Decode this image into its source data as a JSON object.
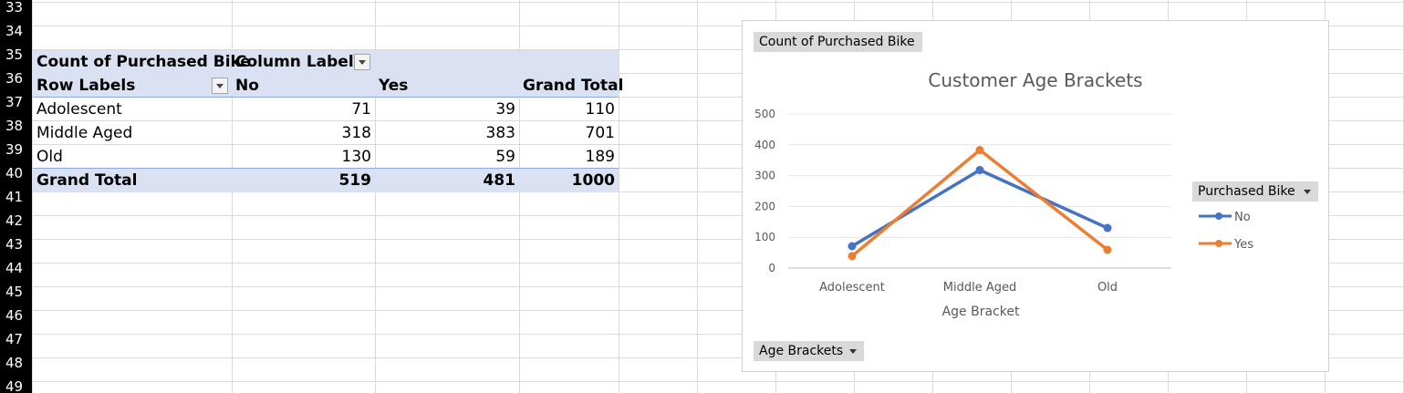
{
  "row_numbers": [
    "33",
    "34",
    "35",
    "36",
    "37",
    "38",
    "39",
    "40",
    "41",
    "42",
    "43",
    "44",
    "45",
    "46",
    "47",
    "48",
    "49"
  ],
  "pivot": {
    "corner_label": "Count of Purchased Bike",
    "column_labels": "Column Labels",
    "row_labels": "Row Labels",
    "col_headers": [
      "No",
      "Yes",
      "Grand Total"
    ],
    "rows": [
      {
        "label": "Adolescent",
        "no": "71",
        "yes": "39",
        "total": "110"
      },
      {
        "label": "Middle Aged",
        "no": "318",
        "yes": "383",
        "total": "701"
      },
      {
        "label": "Old",
        "no": "130",
        "yes": "59",
        "total": "189"
      }
    ],
    "grand_total": {
      "label": "Grand Total",
      "no": "519",
      "yes": "481",
      "total": "1000"
    }
  },
  "chart": {
    "value_field_button": "Count of Purchased Bike",
    "axis_field_button": "Age Brackets",
    "legend_field_button": "Purchased Bike"
  },
  "chart_data": {
    "type": "line",
    "title": "Customer Age Brackets",
    "xlabel": "Age Bracket",
    "ylabel": "",
    "categories": [
      "Adolescent",
      "Middle Aged",
      "Old"
    ],
    "ylim": [
      0,
      500
    ],
    "yticks": [
      "0",
      "100",
      "200",
      "300",
      "400",
      "500"
    ],
    "grid": true,
    "legend_position": "right",
    "series": [
      {
        "name": "No",
        "values": [
          71,
          318,
          130
        ],
        "color": "#4472c4"
      },
      {
        "name": "Yes",
        "values": [
          39,
          383,
          59
        ],
        "color": "#ed7d31"
      }
    ]
  }
}
